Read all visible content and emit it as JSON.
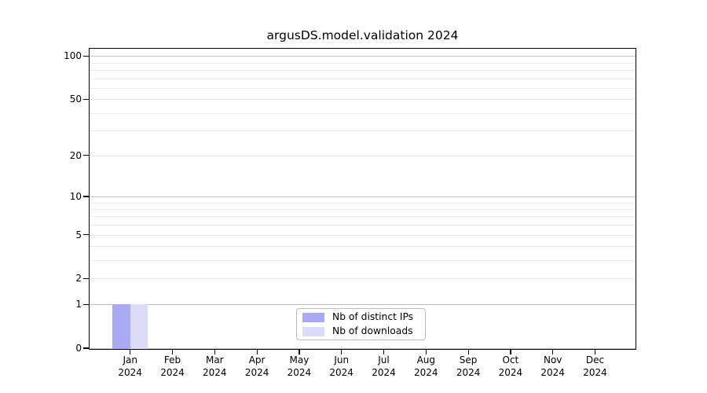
{
  "chart_data": {
    "type": "bar",
    "title": "argusDS.model.validation 2024",
    "categories": [
      "Jan",
      "Feb",
      "Mar",
      "Apr",
      "May",
      "Jun",
      "Jul",
      "Aug",
      "Sep",
      "Oct",
      "Nov",
      "Dec"
    ],
    "category_year": "2024",
    "series": [
      {
        "name": "Nb of distinct IPs",
        "color": "#a9a9f5",
        "values": [
          1,
          0,
          0,
          0,
          0,
          0,
          0,
          0,
          0,
          0,
          0,
          0
        ]
      },
      {
        "name": "Nb of downloads",
        "color": "#dcdcf8",
        "values": [
          1,
          0,
          0,
          0,
          0,
          0,
          0,
          0,
          0,
          0,
          0,
          0
        ]
      }
    ],
    "xlabel": "",
    "ylabel": "",
    "y_scale": "log1p",
    "y_ticks": [
      0,
      1,
      2,
      5,
      10,
      20,
      50,
      100
    ],
    "y_major_grid": [
      1,
      10,
      100
    ],
    "y_minor_grid": [
      2,
      3,
      4,
      5,
      6,
      7,
      8,
      9,
      20,
      30,
      40,
      50,
      60,
      70,
      80,
      90
    ],
    "ylim": [
      0,
      113
    ],
    "grid": true,
    "legend_position": "lower center",
    "colors": {
      "major_grid": "#c2c2c2",
      "minor_grid": "#ebebeb",
      "spine": "#000000",
      "text": "#000000",
      "background": "#ffffff"
    }
  }
}
